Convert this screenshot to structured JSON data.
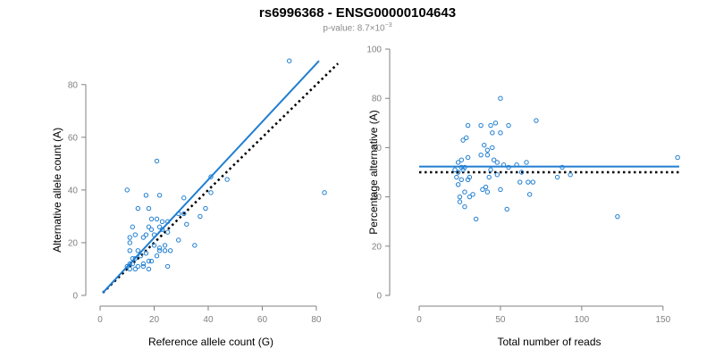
{
  "header": {
    "title": "rs6996368 - ENSG00000104643",
    "pvalue_prefix": "p-value: 8.7×10",
    "pvalue_exponent": "−3"
  },
  "colors": {
    "points": "#1f7ed1",
    "fit": "#1f7ed1",
    "reference": "#000000",
    "axis": "#808080"
  },
  "chart_data": [
    {
      "type": "scatter",
      "xlabel": "Reference allele count (G)",
      "ylabel": "Alternative allele count (A)",
      "xlim": [
        0,
        82
      ],
      "ylim": [
        0,
        85
      ],
      "xticks": [
        0,
        20,
        40,
        60,
        80
      ],
      "yticks": [
        0,
        20,
        40,
        60,
        80
      ],
      "fit_line": {
        "x": [
          1,
          81
        ],
        "y": [
          1,
          89
        ]
      },
      "reference_line": {
        "x": [
          1,
          88
        ],
        "y": [
          1,
          88
        ]
      },
      "points": [
        [
          70,
          89
        ],
        [
          83,
          39
        ],
        [
          10,
          40
        ],
        [
          21,
          51
        ],
        [
          47,
          44
        ],
        [
          41,
          45
        ],
        [
          41,
          39
        ],
        [
          31,
          37
        ],
        [
          39,
          33
        ],
        [
          37,
          30
        ],
        [
          29,
          31
        ],
        [
          31,
          31
        ],
        [
          35,
          19
        ],
        [
          32,
          27
        ],
        [
          25,
          28
        ],
        [
          22,
          38
        ],
        [
          17,
          38
        ],
        [
          18,
          33
        ],
        [
          14,
          33
        ],
        [
          22,
          26
        ],
        [
          23,
          25
        ],
        [
          19,
          29
        ],
        [
          21,
          29
        ],
        [
          23,
          28
        ],
        [
          18,
          26
        ],
        [
          19,
          25
        ],
        [
          17,
          23
        ],
        [
          20,
          23
        ],
        [
          16,
          22
        ],
        [
          11,
          22
        ],
        [
          11,
          20
        ],
        [
          13,
          23
        ],
        [
          12,
          26
        ],
        [
          20,
          19
        ],
        [
          22,
          18
        ],
        [
          24,
          19
        ],
        [
          26,
          17
        ],
        [
          24,
          17
        ],
        [
          22,
          17
        ],
        [
          25,
          24
        ],
        [
          29,
          21
        ],
        [
          17,
          16
        ],
        [
          18,
          13
        ],
        [
          16,
          12
        ],
        [
          14,
          11
        ],
        [
          12,
          12
        ],
        [
          11,
          12
        ],
        [
          13,
          14
        ],
        [
          15,
          15
        ],
        [
          14,
          17
        ],
        [
          11,
          17
        ],
        [
          11,
          10
        ],
        [
          13,
          10
        ],
        [
          16,
          11
        ],
        [
          19,
          13
        ],
        [
          18,
          10
        ],
        [
          21,
          15
        ],
        [
          25,
          11
        ],
        [
          12,
          14
        ],
        [
          10,
          11
        ]
      ]
    },
    {
      "type": "scatter",
      "xlabel": "Total number of reads",
      "ylabel": "Percentage alternative (A)",
      "xlim": [
        0,
        160
      ],
      "ylim": [
        0,
        100
      ],
      "xticks": [
        0,
        50,
        100,
        150
      ],
      "yticks": [
        0,
        20,
        40,
        60,
        80,
        100
      ],
      "fit_line": {
        "y": 52.3
      },
      "reference_line": {
        "y": 50
      },
      "points": [
        [
          50,
          80
        ],
        [
          72,
          71
        ],
        [
          47,
          70
        ],
        [
          30,
          69
        ],
        [
          38,
          69
        ],
        [
          44,
          69
        ],
        [
          55,
          69
        ],
        [
          45,
          66
        ],
        [
          50,
          66
        ],
        [
          27,
          63
        ],
        [
          29,
          64
        ],
        [
          40,
          61
        ],
        [
          42,
          59
        ],
        [
          45,
          60
        ],
        [
          42,
          57
        ],
        [
          38,
          57
        ],
        [
          46,
          55
        ],
        [
          48,
          54
        ],
        [
          52,
          53
        ],
        [
          30,
          56
        ],
        [
          26,
          55
        ],
        [
          24,
          54
        ],
        [
          26,
          52
        ],
        [
          28,
          52
        ],
        [
          22,
          51
        ],
        [
          24,
          50
        ],
        [
          27,
          51
        ],
        [
          31,
          48
        ],
        [
          23,
          48
        ],
        [
          26,
          47
        ],
        [
          30,
          47
        ],
        [
          43,
          48
        ],
        [
          48,
          49
        ],
        [
          55,
          52
        ],
        [
          60,
          53
        ],
        [
          63,
          50
        ],
        [
          66,
          54
        ],
        [
          70,
          46
        ],
        [
          67,
          46
        ],
        [
          62,
          46
        ],
        [
          50,
          43
        ],
        [
          41,
          44
        ],
        [
          39,
          43
        ],
        [
          42,
          42
        ],
        [
          28,
          42
        ],
        [
          24,
          45
        ],
        [
          25,
          40
        ],
        [
          31,
          40
        ],
        [
          33,
          41
        ],
        [
          25,
          38
        ],
        [
          28,
          36
        ],
        [
          35,
          31
        ],
        [
          54,
          35
        ],
        [
          68,
          41
        ],
        [
          85,
          48
        ],
        [
          88,
          52
        ],
        [
          93,
          49
        ],
        [
          122,
          32
        ],
        [
          159,
          56
        ],
        [
          44,
          51
        ]
      ]
    }
  ]
}
